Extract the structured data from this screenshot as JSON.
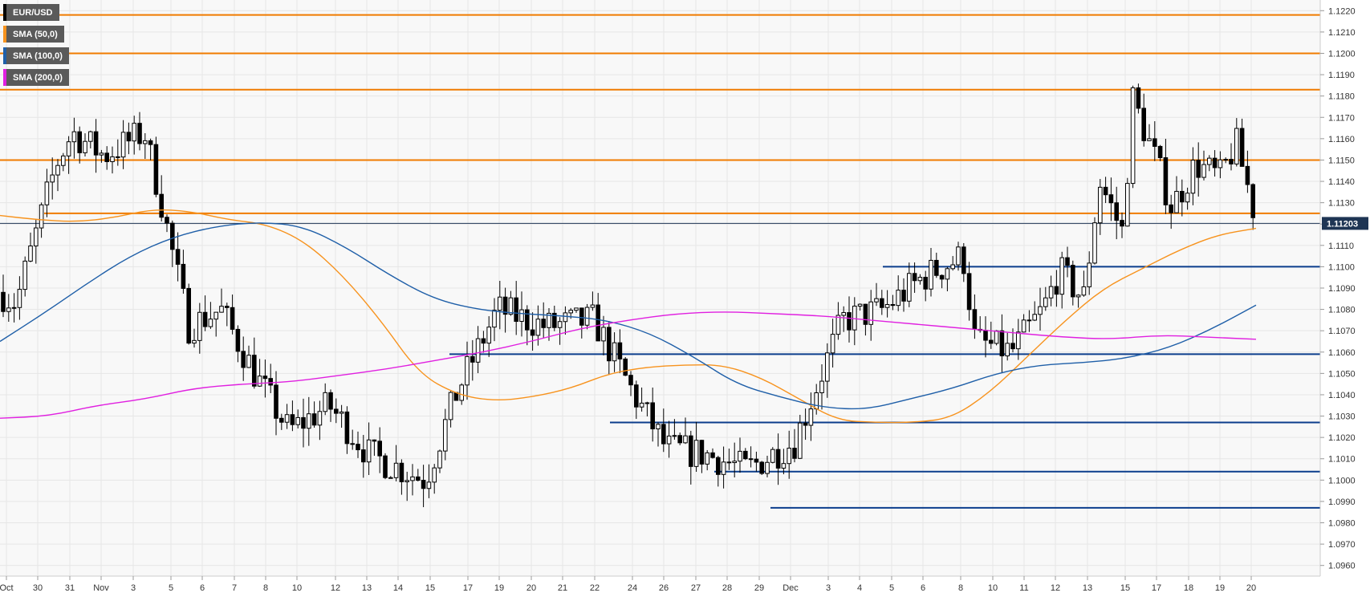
{
  "instrument": "EUR/USD",
  "legend": [
    {
      "label": "EUR/USD",
      "color": "#000000"
    },
    {
      "label": "SMA (50,0)",
      "color": "#f7931e"
    },
    {
      "label": "SMA (100,0)",
      "color": "#1f5fa8"
    },
    {
      "label": "SMA (200,0)",
      "color": "#e020e0"
    }
  ],
  "colors": {
    "resistance": "#f07b00",
    "support": "#0b3d8c",
    "sma50": "#f7931e",
    "sma100": "#1f5fa8",
    "sma200": "#e020e0",
    "price_label_bg": "#1e3554",
    "candle": "#000000"
  },
  "chart_data": {
    "type": "candlestick",
    "y_axis": {
      "min": 1.0955,
      "max": 1.1225,
      "position": "right",
      "ticks": [
        "1.0960",
        "1.0970",
        "1.0980",
        "1.0990",
        "1.1000",
        "1.1010",
        "1.1020",
        "1.1030",
        "1.1040",
        "1.1050",
        "1.1060",
        "1.1070",
        "1.1080",
        "1.1090",
        "1.1100",
        "1.1110",
        "1.1120",
        "1.1130",
        "1.1140",
        "1.1150",
        "1.1160",
        "1.1170",
        "1.1180",
        "1.1190",
        "1.1200",
        "1.1210",
        "1.1220"
      ]
    },
    "x_axis": {
      "ticks": [
        "Oct",
        "30",
        "31",
        "Nov",
        "3",
        "5",
        "6",
        "7",
        "8",
        "10",
        "12",
        "13",
        "14",
        "15",
        "17",
        "19",
        "20",
        "21",
        "22",
        "24",
        "26",
        "27",
        "28",
        "29",
        "Dec",
        "3",
        "4",
        "5",
        "6",
        "8",
        "10",
        "11",
        "12",
        "13",
        "15",
        "17",
        "18",
        "19",
        "20"
      ]
    },
    "last_price": "1.11203",
    "last_price_value": 1.11203,
    "horizontal_lines": {
      "resistance": [
        1.1218,
        1.12,
        1.1183,
        1.115,
        1.1125
      ],
      "support": [
        1.11,
        1.1059,
        1.1027,
        1.1004,
        1.0987
      ]
    },
    "series": [
      {
        "name": "SMA (50,0)",
        "color": "#f7931e",
        "values": [
          1.1124,
          1.1122,
          1.1121,
          1.1123,
          1.1127,
          1.1126,
          1.1122,
          1.112,
          1.1112,
          1.1096,
          1.1075,
          1.105,
          1.104,
          1.1037,
          1.1039,
          1.1043,
          1.105,
          1.1053,
          1.1054,
          1.1054,
          1.1048,
          1.1038,
          1.1028,
          1.1027,
          1.1027,
          1.1029,
          1.1041,
          1.1058,
          1.1075,
          1.109,
          1.1099,
          1.1108,
          1.1115,
          1.1118
        ]
      },
      {
        "name": "SMA (100,0)",
        "color": "#1f5fa8",
        "values": [
          1.1065,
          1.1078,
          1.1092,
          1.1105,
          1.1114,
          1.1119,
          1.1121,
          1.1119,
          1.1109,
          1.1096,
          1.1085,
          1.108,
          1.1078,
          1.1077,
          1.1075,
          1.1069,
          1.1058,
          1.1045,
          1.1039,
          1.1034,
          1.1033,
          1.1038,
          1.1043,
          1.105,
          1.1054,
          1.1055,
          1.1057,
          1.1062,
          1.1071,
          1.1082
        ]
      },
      {
        "name": "SMA (200,0)",
        "color": "#e020e0",
        "values": [
          1.1029,
          1.103,
          1.1035,
          1.1038,
          1.1043,
          1.1045,
          1.1046,
          1.1049,
          1.1052,
          1.1056,
          1.106,
          1.1065,
          1.1071,
          1.1075,
          1.1078,
          1.1079,
          1.1078,
          1.1077,
          1.1075,
          1.1073,
          1.1071,
          1.1069,
          1.1067,
          1.1066,
          1.1068,
          1.1067,
          1.1066
        ]
      }
    ],
    "grid": true
  }
}
